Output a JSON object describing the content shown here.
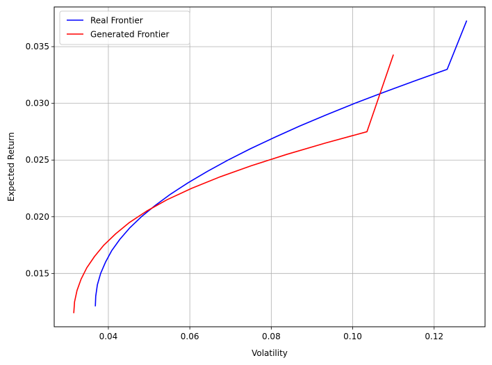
{
  "chart_data": {
    "type": "line",
    "xlabel": "Volatility",
    "ylabel": "Expected Return",
    "xlim": [
      0.0267,
      0.1325
    ],
    "ylim": [
      0.0103,
      0.0385
    ],
    "xticks": [
      0.04,
      0.06,
      0.08,
      0.1,
      0.12
    ],
    "xtick_labels": [
      "0.04",
      "0.06",
      "0.08",
      "0.10",
      "0.12"
    ],
    "yticks": [
      0.015,
      0.02,
      0.025,
      0.03,
      0.035
    ],
    "ytick_labels": [
      "0.015",
      "0.020",
      "0.025",
      "0.030",
      "0.035"
    ],
    "grid": true,
    "legend_position": "top-left",
    "series": [
      {
        "name": "Real Frontier",
        "color": "#0000ff",
        "points": [
          [
            0.0368,
            0.0121
          ],
          [
            0.0369,
            0.013
          ],
          [
            0.0373,
            0.014
          ],
          [
            0.0381,
            0.015
          ],
          [
            0.0393,
            0.016
          ],
          [
            0.0408,
            0.017
          ],
          [
            0.0428,
            0.018
          ],
          [
            0.0452,
            0.019
          ],
          [
            0.0481,
            0.02
          ],
          [
            0.0515,
            0.021
          ],
          [
            0.0553,
            0.022
          ],
          [
            0.0596,
            0.023
          ],
          [
            0.0643,
            0.024
          ],
          [
            0.0694,
            0.025
          ],
          [
            0.0749,
            0.026
          ],
          [
            0.0808,
            0.027
          ],
          [
            0.087,
            0.028
          ],
          [
            0.0936,
            0.029
          ],
          [
            0.1005,
            0.03
          ],
          [
            0.1078,
            0.031
          ],
          [
            0.1154,
            0.032
          ],
          [
            0.1232,
            0.033
          ],
          [
            0.128,
            0.0373
          ]
        ]
      },
      {
        "name": "Generated Frontier",
        "color": "#ff0000",
        "points": [
          [
            0.0315,
            0.0115
          ],
          [
            0.0317,
            0.0125
          ],
          [
            0.0323,
            0.0135
          ],
          [
            0.0333,
            0.0145
          ],
          [
            0.0347,
            0.0155
          ],
          [
            0.0366,
            0.0165
          ],
          [
            0.0389,
            0.0175
          ],
          [
            0.0418,
            0.0185
          ],
          [
            0.0452,
            0.0195
          ],
          [
            0.0494,
            0.0205
          ],
          [
            0.0544,
            0.0215
          ],
          [
            0.0604,
            0.0225
          ],
          [
            0.0673,
            0.0235
          ],
          [
            0.0751,
            0.0245
          ],
          [
            0.0838,
            0.0255
          ],
          [
            0.0933,
            0.0265
          ],
          [
            0.1035,
            0.0275
          ],
          [
            0.11,
            0.0343
          ]
        ]
      }
    ]
  }
}
